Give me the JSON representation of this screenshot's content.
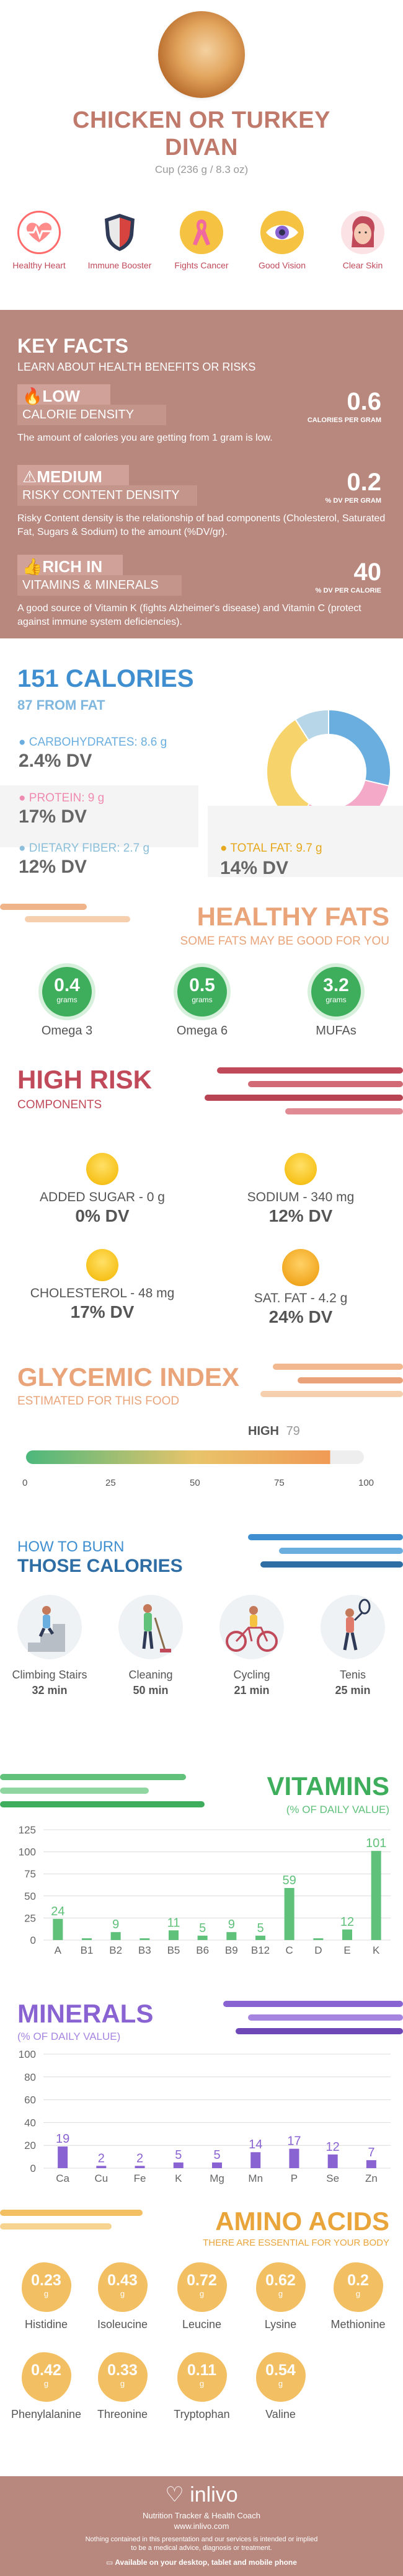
{
  "header": {
    "title_line1": "CHICKEN OR TURKEY",
    "title_line2": "DIVAN",
    "serving": "Cup (236 g / 8.3 oz)"
  },
  "benefits": [
    {
      "label": "Healthy Heart",
      "icon": "heart-rate-icon",
      "color": "#ff6b6b"
    },
    {
      "label": "Immune Booster",
      "icon": "shield-icon",
      "color": "#d7443f"
    },
    {
      "label": "Fights Cancer",
      "icon": "ribbon-icon",
      "color": "#f5c242"
    },
    {
      "label": "Good Vision",
      "icon": "eye-icon",
      "color": "#f5c242"
    },
    {
      "label": "Clear Skin",
      "icon": "face-icon",
      "color": "#f3b7bd"
    }
  ],
  "key_facts": {
    "title": "KEY FACTS",
    "subtitle": "LEARN ABOUT HEALTH BENEFITS OR RISKS",
    "facts": [
      {
        "level": "LOW",
        "name": "CALORIE DENSITY",
        "value": "0.6",
        "unit": "CALORIES PER GRAM",
        "description": "The amount of calories you are getting from 1 gram is low."
      },
      {
        "level": "MEDIUM",
        "name": "RISKY CONTENT DENSITY",
        "value": "0.2",
        "unit": "% DV PER GRAM",
        "description": "Risky Content density is the relationship of bad components (Cholesterol, Saturated Fat, Sugars & Sodium) to the amount (%DV/gr)."
      },
      {
        "level": "RICH IN",
        "name": "VITAMINS & MINERALS",
        "value": "40",
        "unit": "% DV PER CALORIE",
        "description": "A good source of Vitamin K (fights Alzheimer's disease) and Vitamin C (protect against immune system deficiencies)."
      }
    ]
  },
  "calories": {
    "title": "151 CALORIES",
    "subtitle": "87 FROM FAT",
    "macros": [
      {
        "label": "CARBOHYDRATES: 8.6 g",
        "dv": "2.4% DV",
        "color": "#6aaee0"
      },
      {
        "label": "PROTEIN: 9 g",
        "dv": "17% DV",
        "color": "#f3a9c7"
      },
      {
        "label": "DIETARY FIBER: 2.7 g",
        "dv": "12% DV",
        "color": "#b7d7e8"
      },
      {
        "label": "TOTAL FAT: 9.7 g",
        "dv": "14% DV",
        "color": "#f5c242"
      }
    ],
    "donut": [
      {
        "name": "carbohydrates",
        "value": 8.6,
        "color": "#6aaee0"
      },
      {
        "name": "protein",
        "value": 9,
        "color": "#f3a9c7"
      },
      {
        "name": "fat",
        "value": 9.7,
        "color": "#f7d36b"
      },
      {
        "name": "fiber",
        "value": 2.7,
        "color": "#b7d7e8"
      }
    ]
  },
  "healthy_fats": {
    "title": "HEALTHY FATS",
    "subtitle": "SOME FATS MAY BE GOOD FOR YOU",
    "items": [
      {
        "value": "0.4",
        "unit": "grams",
        "label": "Omega 3"
      },
      {
        "value": "0.5",
        "unit": "grams",
        "label": "Omega 6"
      },
      {
        "value": "3.2",
        "unit": "grams",
        "label": "MUFAs"
      }
    ]
  },
  "high_risk": {
    "title": "HIGH RISK",
    "subtitle": "COMPONENTS",
    "items": [
      {
        "label": "ADDED SUGAR - 0 g",
        "dv": "0% DV"
      },
      {
        "label": "SODIUM - 340 mg",
        "dv": "12% DV"
      },
      {
        "label": "CHOLESTEROL - 48 mg",
        "dv": "17% DV"
      },
      {
        "label": "SAT. FAT - 4.2 g",
        "dv": "24% DV"
      }
    ]
  },
  "glycemic": {
    "title": "GLYCEMIC INDEX",
    "subtitle": "ESTIMATED FOR THIS FOOD",
    "level": "HIGH",
    "value": "79",
    "ticks": [
      "0",
      "25",
      "50",
      "75",
      "100"
    ]
  },
  "burn": {
    "title1": "HOW TO BURN",
    "title2": "THOSE CALORIES",
    "items": [
      {
        "label": "Climbing Stairs",
        "value": "32 min",
        "icon": "stairs-icon"
      },
      {
        "label": "Cleaning",
        "value": "50 min",
        "icon": "cleaning-icon"
      },
      {
        "label": "Cycling",
        "value": "21 min",
        "icon": "cycling-icon"
      },
      {
        "label": "Tenis",
        "value": "25 min",
        "icon": "tennis-icon"
      }
    ]
  },
  "vitamins": {
    "title": "VITAMINS",
    "subtitle": "(% OF DAILY VALUE)",
    "color": "#5fc17a"
  },
  "minerals": {
    "title": "MINERALS",
    "subtitle": "(% OF DAILY VALUE)",
    "color": "#8a63d2"
  },
  "chart_data": [
    {
      "type": "bar",
      "categories": [
        "A",
        "B1",
        "B2",
        "B3",
        "B5",
        "B6",
        "B9",
        "B12",
        "C",
        "D",
        "E",
        "K"
      ],
      "values": [
        24,
        2,
        9,
        2,
        11,
        5,
        9,
        5,
        59,
        2,
        12,
        101
      ],
      "labels": [
        "24",
        "",
        "9",
        "",
        "11",
        "5",
        "9",
        "5",
        "59",
        "",
        "12",
        "101"
      ],
      "ylim": [
        0,
        125
      ],
      "yticks": [
        "0",
        "25",
        "50",
        "75",
        "100",
        "125"
      ],
      "grid": true
    },
    {
      "type": "bar",
      "categories": [
        "Ca",
        "Cu",
        "Fe",
        "K",
        "Mg",
        "Mn",
        "P",
        "Se",
        "Zn"
      ],
      "values": [
        19,
        2,
        2,
        5,
        5,
        14,
        17,
        12,
        7
      ],
      "labels": [
        "19",
        "2",
        "2",
        "5",
        "5",
        "14",
        "17",
        "12",
        "7"
      ],
      "ylim": [
        0,
        100
      ],
      "yticks": [
        "0",
        "20",
        "40",
        "60",
        "80",
        "100"
      ],
      "grid": true
    }
  ],
  "amino_acids": {
    "title": "AMINO ACIDS",
    "subtitle": "THERE ARE ESSENTIAL FOR YOUR BODY",
    "items": [
      {
        "value": "0.23",
        "unit": "g",
        "label": "Histidine"
      },
      {
        "value": "0.43",
        "unit": "g",
        "label": "Isoleucine"
      },
      {
        "value": "0.72",
        "unit": "g",
        "label": "Leucine"
      },
      {
        "value": "0.62",
        "unit": "g",
        "label": "Lysine"
      },
      {
        "value": "0.2",
        "unit": "g",
        "label": "Methionine"
      },
      {
        "value": "0.42",
        "unit": "g",
        "label": "Phenylalanine"
      },
      {
        "value": "0.33",
        "unit": "g",
        "label": "Threonine"
      },
      {
        "value": "0.11",
        "unit": "g",
        "label": "Tryptophan"
      },
      {
        "value": "0.54",
        "unit": "g",
        "label": "Valine"
      }
    ]
  },
  "footer": {
    "brand": "inlivo",
    "tagline": "Nutrition Tracker & Health Coach",
    "url": "www.inlivo.com",
    "disclaimer_line1": "Nothing contained in this presentation and our services is intended or implied",
    "disclaimer_line2": "to be a medical advice, diagnosis or treatment.",
    "available": "Available on your desktop, tablet and mobile phone"
  }
}
